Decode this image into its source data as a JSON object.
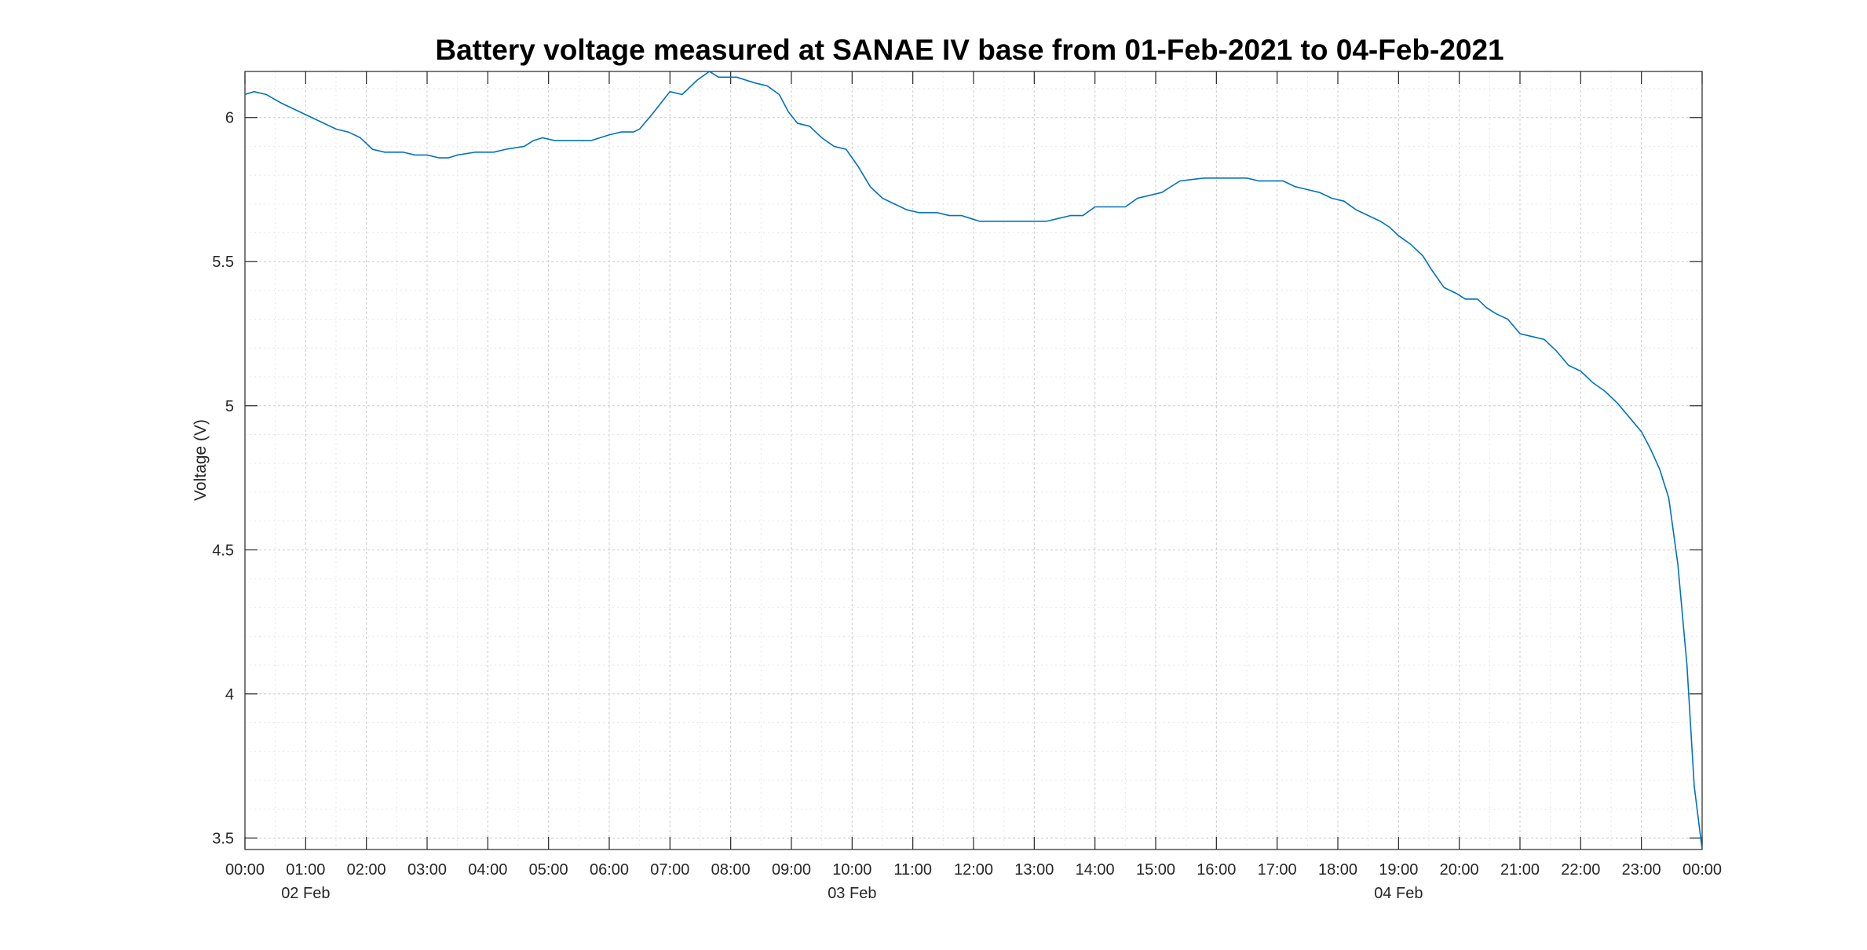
{
  "chart_data": {
    "type": "line",
    "title": "Battery voltage measured at SANAE IV base from 01-Feb-2021 to 04-Feb-2021",
    "xlabel": "",
    "ylabel": "Voltage (V)",
    "xlim": [
      "00:00",
      "00:00"
    ],
    "ylim": [
      3.46,
      6.16
    ],
    "grid": "on (major and minor, dotted)",
    "line_color": "#0072BD",
    "x_ticks": [
      "00:00",
      "01:00",
      "02:00",
      "03:00",
      "04:00",
      "05:00",
      "06:00",
      "07:00",
      "08:00",
      "09:00",
      "10:00",
      "11:00",
      "12:00",
      "13:00",
      "14:00",
      "15:00",
      "16:00",
      "17:00",
      "18:00",
      "19:00",
      "20:00",
      "21:00",
      "22:00",
      "23:00",
      "00:00"
    ],
    "date_labels": [
      {
        "text": "02 Feb",
        "at_hour": 1
      },
      {
        "text": "03 Feb",
        "at_hour": 10
      },
      {
        "text": "04 Feb",
        "at_hour": 19
      }
    ],
    "y_ticks": [
      3.5,
      4,
      4.5,
      5,
      5.5,
      6
    ],
    "y_tick_labels": [
      "3.5",
      "4",
      "4.5",
      "5",
      "5.5",
      "6"
    ],
    "series": [
      {
        "x_hours": [
          0,
          0.15,
          0.35,
          0.6,
          0.9,
          1.2,
          1.5,
          1.7,
          1.9,
          2.1,
          2.3,
          2.6,
          2.8,
          3.0,
          3.2,
          3.35,
          3.5,
          3.8,
          4.1,
          4.3,
          4.6,
          4.75,
          4.9,
          5.1,
          5.4,
          5.7,
          6.0,
          6.2,
          6.4,
          6.5,
          6.7,
          7.0,
          7.2,
          7.45,
          7.65,
          7.8,
          7.95,
          8.1,
          8.4,
          8.6,
          8.8,
          8.95,
          9.1,
          9.3,
          9.5,
          9.7,
          9.9,
          10.1,
          10.3,
          10.5,
          10.7,
          10.9,
          11.1,
          11.4,
          11.6,
          11.8,
          11.95,
          12.1,
          12.4,
          12.6,
          12.8,
          13.0,
          13.2,
          13.4,
          13.6,
          13.8,
          14.0,
          14.2,
          14.5,
          14.7,
          14.9,
          15.1,
          15.4,
          15.8,
          16.1,
          16.3,
          16.5,
          16.7,
          16.9,
          17.1,
          17.3,
          17.5,
          17.7,
          17.9,
          18.1,
          18.3,
          18.5,
          18.7,
          18.85,
          19.0,
          19.2,
          19.4,
          19.55,
          19.75,
          19.95,
          20.1,
          20.3,
          20.45,
          20.6,
          20.8,
          21.0,
          21.2,
          21.4,
          21.6,
          21.8,
          22.0,
          22.2,
          22.4,
          22.6,
          22.8,
          23.0,
          23.15,
          23.3,
          23.45,
          23.6,
          23.75,
          23.87,
          24.0
        ],
        "values": [
          6.08,
          6.09,
          6.08,
          6.05,
          6.02,
          5.99,
          5.96,
          5.95,
          5.93,
          5.89,
          5.88,
          5.88,
          5.87,
          5.87,
          5.86,
          5.86,
          5.87,
          5.88,
          5.88,
          5.89,
          5.9,
          5.92,
          5.93,
          5.92,
          5.92,
          5.92,
          5.94,
          5.95,
          5.95,
          5.96,
          6.01,
          6.09,
          6.08,
          6.13,
          6.16,
          6.14,
          6.14,
          6.14,
          6.12,
          6.11,
          6.08,
          6.02,
          5.98,
          5.97,
          5.93,
          5.9,
          5.89,
          5.83,
          5.76,
          5.72,
          5.7,
          5.68,
          5.67,
          5.67,
          5.66,
          5.66,
          5.65,
          5.64,
          5.64,
          5.64,
          5.64,
          5.64,
          5.64,
          5.65,
          5.66,
          5.66,
          5.69,
          5.69,
          5.69,
          5.72,
          5.73,
          5.74,
          5.78,
          5.79,
          5.79,
          5.79,
          5.79,
          5.78,
          5.78,
          5.78,
          5.76,
          5.75,
          5.74,
          5.72,
          5.71,
          5.68,
          5.66,
          5.64,
          5.62,
          5.59,
          5.56,
          5.52,
          5.47,
          5.41,
          5.39,
          5.37,
          5.37,
          5.34,
          5.32,
          5.3,
          5.25,
          5.24,
          5.23,
          5.19,
          5.14,
          5.12,
          5.08,
          5.05,
          5.01,
          4.96,
          4.91,
          4.85,
          4.78,
          4.68,
          4.45,
          4.1,
          3.68,
          3.46
        ]
      }
    ]
  }
}
